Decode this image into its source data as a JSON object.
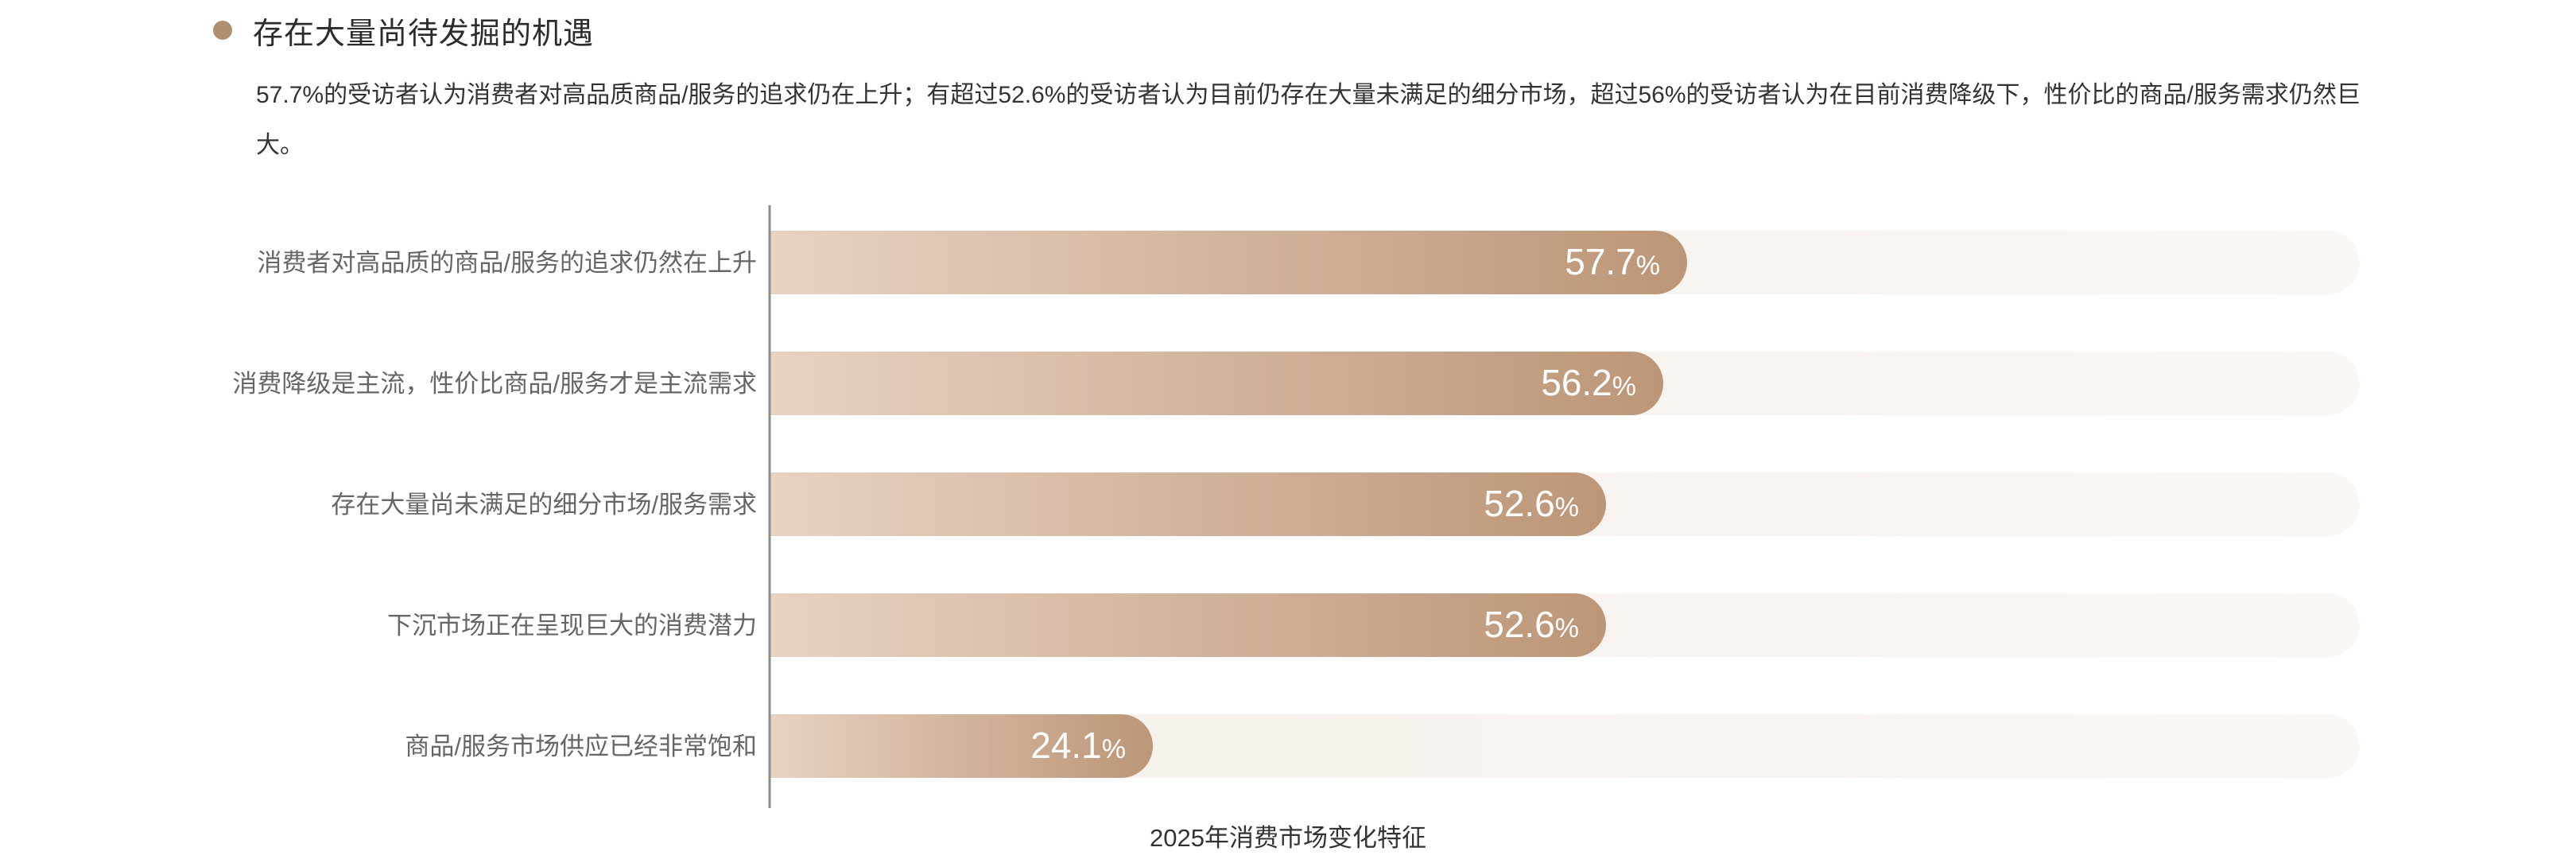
{
  "section": {
    "title": "存在大量尚待发掘的机遇",
    "intro": "57.7%的受访者认为消费者对高品质商品/服务的追求仍在上升；有超过52.6%的受访者认为目前仍存在大量未满足的细分市场，超过56%的受访者认为在目前消费降级下，性价比的商品/服务需求仍然巨大。"
  },
  "chart_data": {
    "type": "bar",
    "orientation": "horizontal",
    "title": "2025年消费市场变化特征",
    "categories": [
      "消费者对高品质的商品/服务的追求仍然在上升",
      "消费降级是主流，性价比商品/服务才是主流需求",
      "存在大量尚未满足的细分市场/服务需求",
      "下沉市场正在呈现巨大的消费潜力",
      "商品/服务市场供应已经非常饱和"
    ],
    "values": [
      57.7,
      56.2,
      52.6,
      52.6,
      24.1
    ],
    "value_labels": [
      "57.7",
      "56.2",
      "52.6",
      "52.6",
      "24.1"
    ],
    "unit": "%",
    "xlim": [
      0,
      100
    ],
    "grid": false,
    "legend": "none",
    "colors": {
      "bar_start": "#e8d2c2",
      "bar_end": "#bc9677",
      "track": "#f7f2ed",
      "axis": "#8c8c8c",
      "category_text": "#666666",
      "value_text": "#ffffff"
    }
  }
}
